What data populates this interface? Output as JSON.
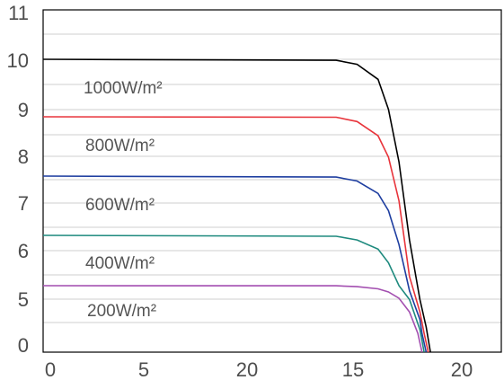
{
  "chart_data": {
    "type": "line",
    "title": "",
    "xlabel": "",
    "ylabel": "",
    "x_tick_labels": [
      "0",
      "5",
      "20",
      "15",
      "20"
    ],
    "y_tick_labels": [
      "0",
      "5",
      "6",
      "7",
      "8",
      "9",
      "10",
      "11"
    ],
    "grid": "horizontal",
    "legend": "none",
    "series": [
      {
        "name": "1000W/m²",
        "color": "#000000",
        "isc": 10.0,
        "voc": 18.5,
        "points": [
          [
            0,
            10.0
          ],
          [
            14,
            9.98
          ],
          [
            15,
            9.9
          ],
          [
            16,
            9.6
          ],
          [
            16.5,
            9.0
          ],
          [
            17,
            7.9
          ],
          [
            17.5,
            6.3
          ],
          [
            18,
            4.2
          ],
          [
            18.3,
            2.0
          ],
          [
            18.5,
            0
          ]
        ]
      },
      {
        "name": "800W/m²",
        "color": "#e8343b",
        "isc": 8.85,
        "voc": 18.4,
        "points": [
          [
            0,
            8.85
          ],
          [
            14,
            8.84
          ],
          [
            15,
            8.75
          ],
          [
            16,
            8.45
          ],
          [
            16.5,
            8.0
          ],
          [
            17,
            7.1
          ],
          [
            17.5,
            5.5
          ],
          [
            18,
            3.2
          ],
          [
            18.2,
            1.5
          ],
          [
            18.4,
            0
          ]
        ]
      },
      {
        "name": "600W/m²",
        "color": "#1e3ea0",
        "isc": 7.6,
        "voc": 18.3,
        "points": [
          [
            0,
            7.6
          ],
          [
            14,
            7.58
          ],
          [
            15,
            7.5
          ],
          [
            16,
            7.25
          ],
          [
            16.5,
            6.9
          ],
          [
            17,
            6.2
          ],
          [
            17.5,
            4.9
          ],
          [
            18,
            2.6
          ],
          [
            18.1,
            1.5
          ],
          [
            18.3,
            0
          ]
        ]
      },
      {
        "name": "400W/m²",
        "color": "#1e8a7e",
        "isc": 6.4,
        "voc": 18.2,
        "points": [
          [
            0,
            6.4
          ],
          [
            14,
            6.38
          ],
          [
            15,
            6.3
          ],
          [
            16,
            6.1
          ],
          [
            16.5,
            5.8
          ],
          [
            17,
            5.3
          ],
          [
            17.5,
            4.2
          ],
          [
            18,
            1.8
          ],
          [
            18.2,
            0
          ]
        ]
      },
      {
        "name": "200W/m²",
        "color": "#a34fb0",
        "isc": 5.3,
        "voc": 18.1,
        "points": [
          [
            0,
            5.3
          ],
          [
            14,
            5.29
          ],
          [
            15,
            5.22
          ],
          [
            16,
            5.05
          ],
          [
            16.5,
            4.8
          ],
          [
            17,
            4.3
          ],
          [
            17.5,
            3.2
          ],
          [
            17.9,
            1.5
          ],
          [
            18.1,
            0
          ]
        ]
      }
    ]
  }
}
